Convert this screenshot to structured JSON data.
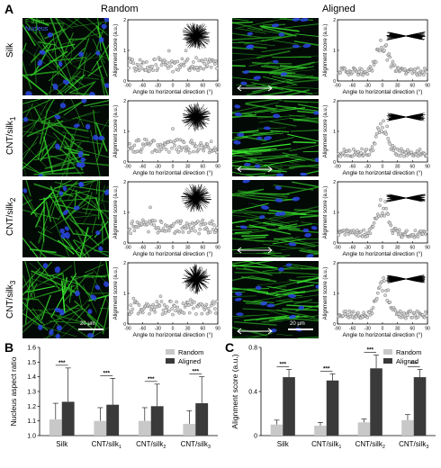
{
  "labels": {
    "panel_a": "A",
    "panel_b": "B",
    "panel_c": "C",
    "col_random": "Random",
    "col_aligned": "Aligned",
    "legend_factin": "F-actin",
    "legend_nucleus": "Nucleus",
    "scale_bar": "20 μm"
  },
  "rows": [
    {
      "base": "Silk",
      "sub": ""
    },
    {
      "base": "CNT/silk",
      "sub": "1"
    },
    {
      "base": "CNT/silk",
      "sub": "2"
    },
    {
      "base": "CNT/silk",
      "sub": "3"
    }
  ],
  "scatter_axis": {
    "ylabel": "Alignment score (a.u.)",
    "xlabel": "Angle to horizontal direction (°)",
    "xticks": [
      "-90",
      "-60",
      "-30",
      "0",
      "30",
      "60",
      "90"
    ],
    "yticks": [
      "0",
      "1",
      "2"
    ]
  },
  "colors": {
    "factin": "#35c22a",
    "nucleus": "#2a46e6",
    "random_bar": "#c8c8c8",
    "aligned_bar": "#3a3a3a"
  },
  "chart_data": [
    {
      "id": "B",
      "type": "bar",
      "ylabel": "Nucleus aspect ratio",
      "ylim": [
        1.0,
        1.6
      ],
      "yticks": [
        "1.0",
        "1.1",
        "1.2",
        "1.3",
        "1.4",
        "1.5",
        "1.6"
      ],
      "categories": [
        {
          "base": "Silk",
          "sub": ""
        },
        {
          "base": "CNT/silk",
          "sub": "1"
        },
        {
          "base": "CNT/silk",
          "sub": "2"
        },
        {
          "base": "CNT/silk",
          "sub": "3"
        }
      ],
      "series": [
        {
          "name": "Random",
          "values": [
            1.11,
            1.1,
            1.1,
            1.08
          ],
          "errors": [
            0.11,
            0.09,
            0.09,
            0.09
          ]
        },
        {
          "name": "Aligned",
          "values": [
            1.23,
            1.21,
            1.2,
            1.22
          ],
          "errors": [
            0.23,
            0.18,
            0.15,
            0.18
          ]
        }
      ],
      "significance": [
        "***",
        "***",
        "***",
        "***"
      ],
      "legend": "top-right"
    },
    {
      "id": "C",
      "type": "bar",
      "ylabel": "Alignment score (a.u.)",
      "ylim": [
        0,
        0.8
      ],
      "yticks": [
        "0",
        "0.4",
        "0.8"
      ],
      "categories": [
        {
          "base": "Silk",
          "sub": ""
        },
        {
          "base": "CNT/silk",
          "sub": "1"
        },
        {
          "base": "CNT/silk",
          "sub": "2"
        },
        {
          "base": "CNT/silk",
          "sub": "3"
        }
      ],
      "series": [
        {
          "name": "Random",
          "values": [
            0.1,
            0.09,
            0.12,
            0.14
          ],
          "errors": [
            0.04,
            0.03,
            0.03,
            0.05
          ]
        },
        {
          "name": "Aligned",
          "values": [
            0.53,
            0.5,
            0.61,
            0.53
          ],
          "errors": [
            0.07,
            0.06,
            0.12,
            0.07
          ]
        }
      ],
      "significance": [
        "***",
        "***",
        "***",
        "***"
      ],
      "legend": "top-right"
    }
  ]
}
